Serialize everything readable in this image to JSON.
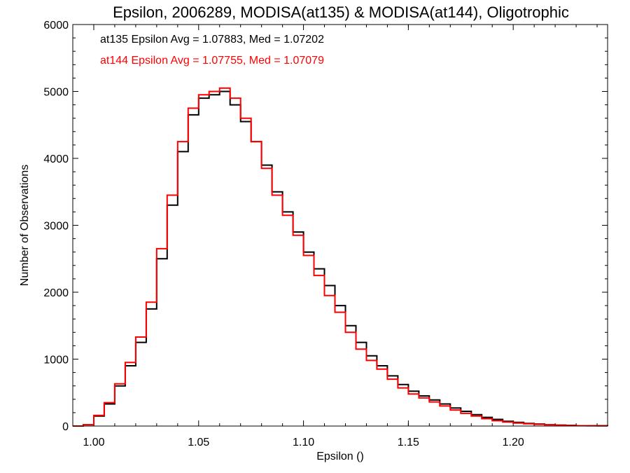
{
  "chart_data": {
    "type": "line",
    "title": "Epsilon, 2006289, MODISA(at135) & MODISA(at144), Oligotrophic",
    "xlabel": "Epsilon ()",
    "ylabel": "Number of Observations",
    "xlim": [
      0.99,
      1.245
    ],
    "ylim": [
      0,
      6000
    ],
    "x_ticks": [
      "1.00",
      "1.05",
      "1.10",
      "1.15",
      "1.20"
    ],
    "y_ticks": [
      "0",
      "1000",
      "2000",
      "3000",
      "4000",
      "5000",
      "6000"
    ],
    "step": "histogram",
    "annotations": [
      {
        "text": "at135 Epsilon Avg = 1.07883, Med = 1.07202",
        "color": "#000000"
      },
      {
        "text": "at144 Epsilon Avg = 1.07755, Med = 1.07079",
        "color": "#ff0000"
      }
    ],
    "x": [
      0.99,
      0.995,
      1.0,
      1.005,
      1.01,
      1.015,
      1.02,
      1.025,
      1.03,
      1.035,
      1.04,
      1.045,
      1.05,
      1.055,
      1.06,
      1.065,
      1.07,
      1.075,
      1.08,
      1.085,
      1.09,
      1.095,
      1.1,
      1.105,
      1.11,
      1.115,
      1.12,
      1.125,
      1.13,
      1.135,
      1.14,
      1.145,
      1.15,
      1.155,
      1.16,
      1.165,
      1.17,
      1.175,
      1.18,
      1.185,
      1.19,
      1.195,
      1.2,
      1.205,
      1.21,
      1.215,
      1.22,
      1.225,
      1.23,
      1.235,
      1.24,
      1.245
    ],
    "series": [
      {
        "name": "at135",
        "color": "#000000",
        "values": [
          0,
          20,
          150,
          330,
          600,
          900,
          1250,
          1750,
          2500,
          3300,
          4100,
          4650,
          4900,
          4950,
          5000,
          4800,
          4550,
          4250,
          3900,
          3500,
          3200,
          2900,
          2600,
          2350,
          2100,
          1800,
          1500,
          1250,
          1050,
          900,
          750,
          620,
          520,
          450,
          390,
          330,
          270,
          220,
          170,
          130,
          100,
          70,
          55,
          40,
          30,
          20,
          15,
          10,
          5,
          5,
          5,
          0
        ]
      },
      {
        "name": "at144",
        "color": "#ff0000",
        "values": [
          0,
          20,
          160,
          350,
          630,
          950,
          1330,
          1850,
          2650,
          3450,
          4250,
          4750,
          4950,
          5000,
          5050,
          4900,
          4600,
          4250,
          3850,
          3450,
          3150,
          2850,
          2550,
          2250,
          1950,
          1700,
          1400,
          1150,
          980,
          850,
          700,
          570,
          480,
          420,
          360,
          300,
          240,
          190,
          150,
          110,
          80,
          60,
          45,
          35,
          25,
          18,
          12,
          8,
          5,
          4,
          3,
          0
        ]
      }
    ]
  }
}
